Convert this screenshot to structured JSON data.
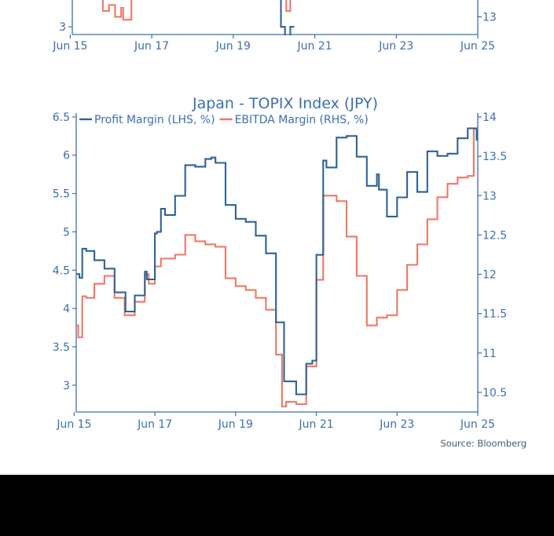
{
  "source_note": "Source: Bloomberg",
  "chart_data": [
    {
      "type": "line",
      "title": "",
      "xlabel": "",
      "x_ticks": [
        "Jun 15",
        "Jun 17",
        "Jun 19",
        "Jun 21",
        "Jun 23",
        "Jun 25"
      ],
      "y_left_ticks": [
        "3"
      ],
      "y_right_ticks": [
        "13"
      ],
      "series": [
        {
          "axis": "left",
          "color": "#2e6296",
          "values": [
            [
              2020.55,
              3.6
            ],
            [
              2020.62,
              3.6
            ],
            [
              2020.62,
              3.0
            ],
            [
              2020.72,
              3.0
            ],
            [
              2020.72,
              2.85
            ],
            [
              2020.85,
              2.85
            ],
            [
              2020.85,
              3.0
            ],
            [
              2020.95,
              3.0
            ]
          ]
        },
        {
          "axis": "right",
          "color": "#ee7867",
          "values": [
            [
              2016.1,
              13.6
            ],
            [
              2016.25,
              13.6
            ],
            [
              2016.25,
              13.1
            ],
            [
              2016.4,
              13.1
            ],
            [
              2016.4,
              13.2
            ],
            [
              2016.55,
              13.2
            ],
            [
              2016.55,
              13.0
            ],
            [
              2016.7,
              13.0
            ],
            [
              2016.7,
              13.15
            ],
            [
              2016.75,
              13.15
            ],
            [
              2016.75,
              12.95
            ],
            [
              2016.95,
              12.95
            ],
            [
              2016.95,
              13.6
            ],
            [
              2020.65,
              13.6
            ],
            [
              2020.65,
              13.4
            ],
            [
              2020.75,
              13.4
            ],
            [
              2020.75,
              13.1
            ],
            [
              2020.85,
              13.1
            ],
            [
              2020.85,
              13.3
            ],
            [
              2020.97,
              13.3
            ]
          ]
        }
      ]
    },
    {
      "type": "line",
      "title": "Japan - TOPIX Index (JPY)",
      "xlabel": "",
      "ylim": [
        2.65,
        6.55
      ],
      "y2lim": [
        10.25,
        14.05
      ],
      "x_ticks": [
        "Jun 15",
        "Jun 17",
        "Jun 19",
        "Jun 21",
        "Jun 23",
        "Jun 25"
      ],
      "y_left_ticks": [
        "3",
        "3.5",
        "4",
        "4.5",
        "5",
        "5.5",
        "6",
        "6.5"
      ],
      "y_right_ticks": [
        "10.5",
        "11",
        "11.5",
        "12",
        "12.5",
        "13",
        "13.5",
        "14"
      ],
      "legend": "top-left",
      "grid": false,
      "series": [
        {
          "name": "Profit Margin (LHS, %)",
          "axis": "left",
          "color": "#2e6296",
          "values": [
            [
              2015.5,
              4.45
            ],
            [
              2015.58,
              4.45
            ],
            [
              2015.58,
              4.4
            ],
            [
              2015.65,
              4.4
            ],
            [
              2015.65,
              4.78
            ],
            [
              2015.75,
              4.78
            ],
            [
              2015.75,
              4.75
            ],
            [
              2015.95,
              4.75
            ],
            [
              2015.95,
              4.63
            ],
            [
              2016.2,
              4.63
            ],
            [
              2016.2,
              4.52
            ],
            [
              2016.45,
              4.52
            ],
            [
              2016.45,
              4.21
            ],
            [
              2016.72,
              4.21
            ],
            [
              2016.72,
              3.96
            ],
            [
              2016.95,
              3.96
            ],
            [
              2016.95,
              4.17
            ],
            [
              2017.2,
              4.17
            ],
            [
              2017.2,
              4.48
            ],
            [
              2017.25,
              4.48
            ],
            [
              2017.25,
              4.38
            ],
            [
              2017.45,
              4.38
            ],
            [
              2017.45,
              4.98
            ],
            [
              2017.5,
              4.98
            ],
            [
              2017.5,
              5.0
            ],
            [
              2017.6,
              5.0
            ],
            [
              2017.6,
              5.3
            ],
            [
              2017.7,
              5.3
            ],
            [
              2017.7,
              5.22
            ],
            [
              2017.95,
              5.22
            ],
            [
              2017.95,
              5.47
            ],
            [
              2018.2,
              5.47
            ],
            [
              2018.2,
              5.87
            ],
            [
              2018.45,
              5.87
            ],
            [
              2018.45,
              5.85
            ],
            [
              2018.7,
              5.85
            ],
            [
              2018.7,
              5.95
            ],
            [
              2018.85,
              5.95
            ],
            [
              2018.85,
              5.97
            ],
            [
              2018.95,
              5.97
            ],
            [
              2018.95,
              5.9
            ],
            [
              2019.2,
              5.9
            ],
            [
              2019.2,
              5.35
            ],
            [
              2019.45,
              5.35
            ],
            [
              2019.45,
              5.17
            ],
            [
              2019.7,
              5.17
            ],
            [
              2019.7,
              5.13
            ],
            [
              2019.95,
              5.13
            ],
            [
              2019.95,
              4.95
            ],
            [
              2020.2,
              4.95
            ],
            [
              2020.2,
              4.72
            ],
            [
              2020.45,
              4.72
            ],
            [
              2020.45,
              3.82
            ],
            [
              2020.65,
              3.82
            ],
            [
              2020.65,
              3.05
            ],
            [
              2020.95,
              3.05
            ],
            [
              2020.95,
              2.88
            ],
            [
              2021.2,
              2.88
            ],
            [
              2021.2,
              3.28
            ],
            [
              2021.35,
              3.28
            ],
            [
              2021.35,
              3.32
            ],
            [
              2021.45,
              3.32
            ],
            [
              2021.45,
              4.7
            ],
            [
              2021.62,
              4.7
            ],
            [
              2021.62,
              5.93
            ],
            [
              2021.7,
              5.93
            ],
            [
              2021.7,
              5.84
            ],
            [
              2021.95,
              5.84
            ],
            [
              2021.95,
              6.23
            ],
            [
              2022.2,
              6.23
            ],
            [
              2022.2,
              6.25
            ],
            [
              2022.45,
              6.25
            ],
            [
              2022.45,
              5.98
            ],
            [
              2022.7,
              5.98
            ],
            [
              2022.7,
              5.6
            ],
            [
              2022.95,
              5.6
            ],
            [
              2022.95,
              5.75
            ],
            [
              2023.0,
              5.75
            ],
            [
              2023.0,
              5.55
            ],
            [
              2023.2,
              5.55
            ],
            [
              2023.2,
              5.2
            ],
            [
              2023.45,
              5.2
            ],
            [
              2023.45,
              5.45
            ],
            [
              2023.7,
              5.45
            ],
            [
              2023.7,
              5.78
            ],
            [
              2023.95,
              5.78
            ],
            [
              2023.95,
              5.52
            ],
            [
              2024.2,
              5.52
            ],
            [
              2024.2,
              6.05
            ],
            [
              2024.45,
              6.05
            ],
            [
              2024.45,
              5.99
            ],
            [
              2024.7,
              5.99
            ],
            [
              2024.7,
              6.02
            ],
            [
              2024.95,
              6.02
            ],
            [
              2024.95,
              6.22
            ],
            [
              2025.2,
              6.22
            ],
            [
              2025.2,
              6.35
            ],
            [
              2025.42,
              6.35
            ],
            [
              2025.42,
              6.2
            ],
            [
              2025.45,
              6.2
            ]
          ]
        },
        {
          "name": "EBITDA Margin (RHS, %)",
          "axis": "right",
          "color": "#ee7867",
          "values": [
            [
              2015.5,
              11.35
            ],
            [
              2015.55,
              11.35
            ],
            [
              2015.55,
              11.2
            ],
            [
              2015.65,
              11.2
            ],
            [
              2015.65,
              11.72
            ],
            [
              2015.75,
              11.72
            ],
            [
              2015.75,
              11.7
            ],
            [
              2015.95,
              11.7
            ],
            [
              2015.95,
              11.88
            ],
            [
              2016.2,
              11.88
            ],
            [
              2016.2,
              11.98
            ],
            [
              2016.45,
              11.98
            ],
            [
              2016.45,
              11.7
            ],
            [
              2016.7,
              11.7
            ],
            [
              2016.7,
              11.48
            ],
            [
              2016.95,
              11.48
            ],
            [
              2016.95,
              11.65
            ],
            [
              2017.2,
              11.65
            ],
            [
              2017.2,
              12.0
            ],
            [
              2017.3,
              12.0
            ],
            [
              2017.3,
              11.88
            ],
            [
              2017.45,
              11.88
            ],
            [
              2017.45,
              12.1
            ],
            [
              2017.6,
              12.1
            ],
            [
              2017.6,
              12.2
            ],
            [
              2017.95,
              12.2
            ],
            [
              2017.95,
              12.25
            ],
            [
              2018.2,
              12.25
            ],
            [
              2018.2,
              12.5
            ],
            [
              2018.45,
              12.5
            ],
            [
              2018.45,
              12.42
            ],
            [
              2018.7,
              12.42
            ],
            [
              2018.7,
              12.38
            ],
            [
              2018.95,
              12.38
            ],
            [
              2018.95,
              12.35
            ],
            [
              2019.2,
              12.35
            ],
            [
              2019.2,
              11.95
            ],
            [
              2019.45,
              11.95
            ],
            [
              2019.45,
              11.85
            ],
            [
              2019.7,
              11.85
            ],
            [
              2019.7,
              11.8
            ],
            [
              2019.95,
              11.8
            ],
            [
              2019.95,
              11.7
            ],
            [
              2020.2,
              11.7
            ],
            [
              2020.2,
              11.55
            ],
            [
              2020.45,
              11.55
            ],
            [
              2020.45,
              10.98
            ],
            [
              2020.6,
              10.98
            ],
            [
              2020.6,
              10.32
            ],
            [
              2020.7,
              10.32
            ],
            [
              2020.7,
              10.38
            ],
            [
              2020.95,
              10.38
            ],
            [
              2020.95,
              10.35
            ],
            [
              2021.2,
              10.35
            ],
            [
              2021.2,
              10.83
            ],
            [
              2021.45,
              10.83
            ],
            [
              2021.45,
              11.93
            ],
            [
              2021.62,
              11.93
            ],
            [
              2021.62,
              13.0
            ],
            [
              2021.95,
              13.0
            ],
            [
              2021.95,
              12.93
            ],
            [
              2022.2,
              12.93
            ],
            [
              2022.2,
              12.48
            ],
            [
              2022.45,
              12.48
            ],
            [
              2022.45,
              11.98
            ],
            [
              2022.7,
              11.98
            ],
            [
              2022.7,
              11.35
            ],
            [
              2022.95,
              11.35
            ],
            [
              2022.95,
              11.45
            ],
            [
              2023.2,
              11.45
            ],
            [
              2023.2,
              11.48
            ],
            [
              2023.45,
              11.48
            ],
            [
              2023.45,
              11.8
            ],
            [
              2023.7,
              11.8
            ],
            [
              2023.7,
              12.12
            ],
            [
              2023.95,
              12.12
            ],
            [
              2023.95,
              12.38
            ],
            [
              2024.2,
              12.38
            ],
            [
              2024.2,
              12.7
            ],
            [
              2024.45,
              12.7
            ],
            [
              2024.45,
              12.98
            ],
            [
              2024.7,
              12.98
            ],
            [
              2024.7,
              13.15
            ],
            [
              2024.95,
              13.15
            ],
            [
              2024.95,
              13.23
            ],
            [
              2025.2,
              13.23
            ],
            [
              2025.2,
              13.25
            ],
            [
              2025.35,
              13.25
            ],
            [
              2025.35,
              13.85
            ],
            [
              2025.45,
              13.85
            ]
          ]
        }
      ]
    }
  ]
}
